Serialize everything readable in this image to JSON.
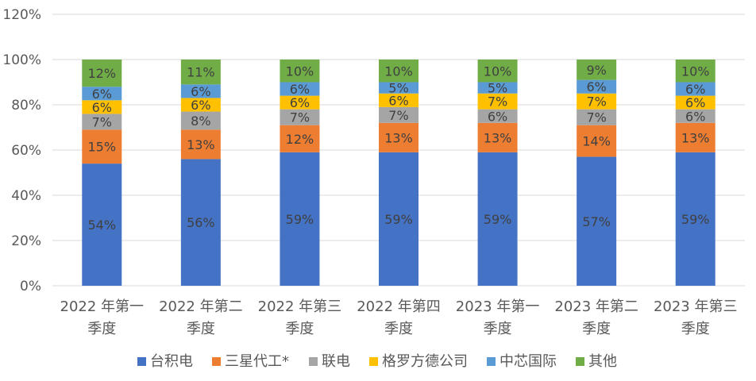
{
  "chart_data": {
    "type": "bar",
    "stacked": true,
    "categories": [
      [
        "2022 年第一",
        "季度"
      ],
      [
        "2022 年第二",
        "季度"
      ],
      [
        "2022 年第三",
        "季度"
      ],
      [
        "2022 年第四",
        "季度"
      ],
      [
        "2023 年第一",
        "季度"
      ],
      [
        "2023 年第二",
        "季度"
      ],
      [
        "2023 年第三",
        "季度"
      ]
    ],
    "ylim": [
      0,
      120
    ],
    "yticks": [
      "0%",
      "20%",
      "40%",
      "60%",
      "80%",
      "100%",
      "120%"
    ],
    "yticks_values": [
      0,
      20,
      40,
      60,
      80,
      100,
      120
    ],
    "grid": true,
    "legend_position": "bottom",
    "series": [
      {
        "name": "台积电",
        "color": "#4472C4",
        "values": [
          54,
          56,
          59,
          59,
          59,
          57,
          59
        ]
      },
      {
        "name": "三星代工*",
        "color": "#ED7D31",
        "values": [
          15,
          13,
          12,
          13,
          13,
          14,
          13
        ]
      },
      {
        "name": "联电",
        "color": "#A5A5A5",
        "values": [
          7,
          8,
          7,
          7,
          6,
          7,
          6
        ]
      },
      {
        "name": "格罗方德公司",
        "color": "#FFC000",
        "values": [
          6,
          6,
          6,
          6,
          7,
          7,
          6
        ]
      },
      {
        "name": "中芯国际",
        "color": "#5B9BD5",
        "values": [
          6,
          6,
          6,
          5,
          5,
          6,
          6
        ]
      },
      {
        "name": "其他",
        "color": "#70AD47",
        "values": [
          12,
          11,
          10,
          10,
          10,
          9,
          10
        ]
      }
    ]
  }
}
